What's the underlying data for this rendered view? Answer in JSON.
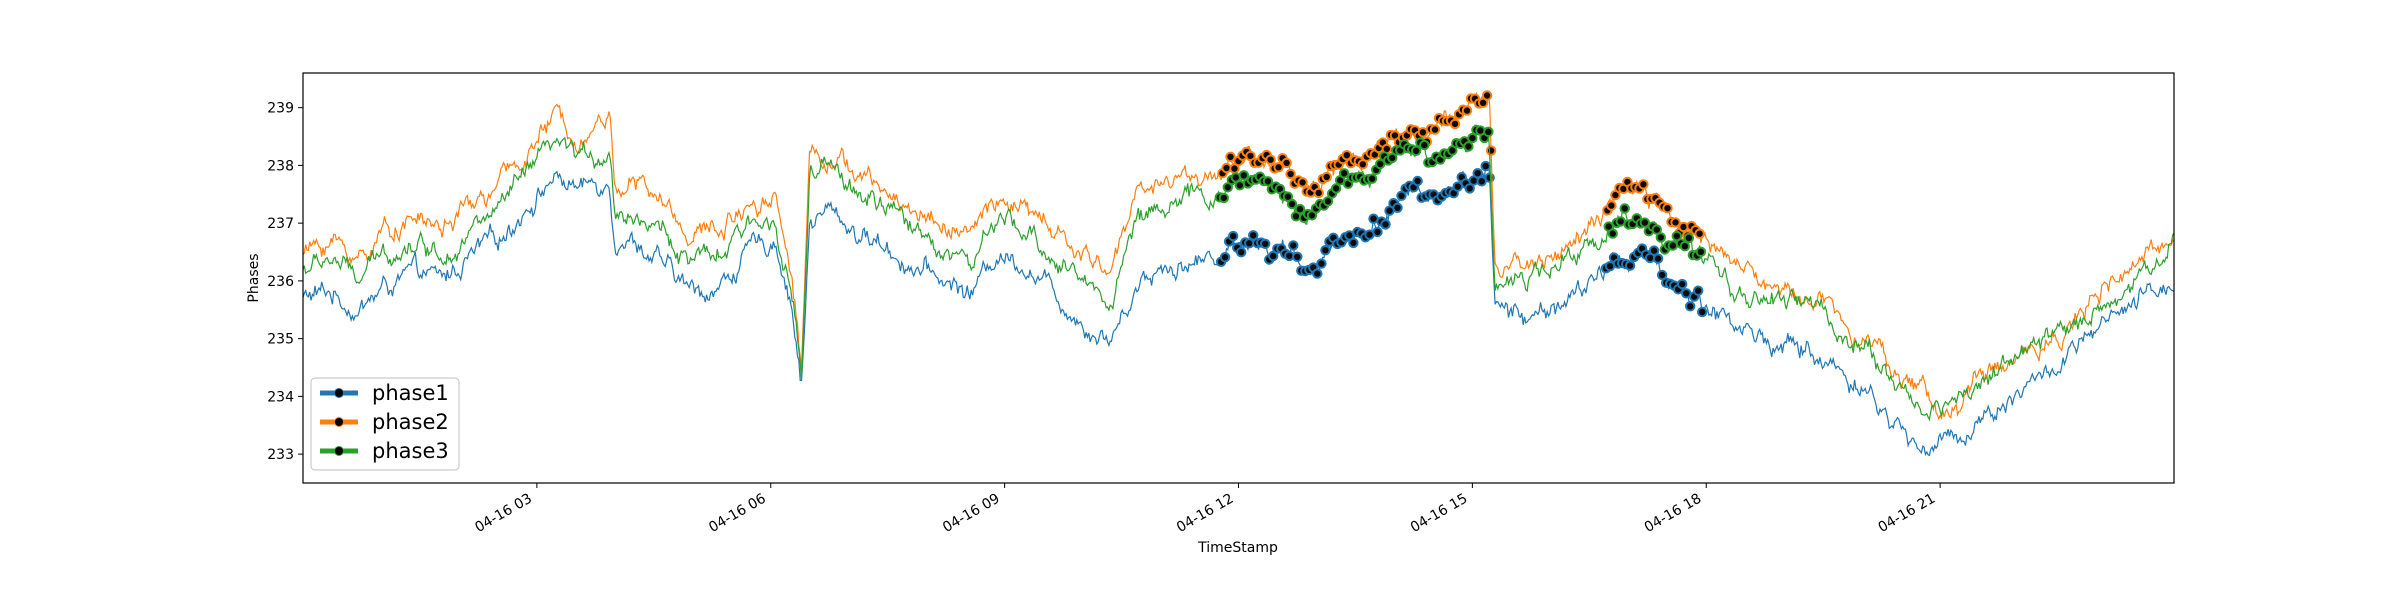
{
  "chart_data": {
    "type": "line",
    "title": "",
    "xlabel": "TimeStamp",
    "ylabel": "Phases",
    "x_range": [
      "04-16 00:00",
      "04-16 24:00"
    ],
    "ylim": [
      232.5,
      239.6
    ],
    "x_ticks": [
      {
        "hour": 3,
        "label": "04-16 03"
      },
      {
        "hour": 6,
        "label": "04-16 06"
      },
      {
        "hour": 9,
        "label": "04-16 09"
      },
      {
        "hour": 12,
        "label": "04-16 12"
      },
      {
        "hour": 15,
        "label": "04-16 15"
      },
      {
        "hour": 18,
        "label": "04-16 18"
      },
      {
        "hour": 21,
        "label": "04-16 21"
      }
    ],
    "y_ticks": [
      233,
      234,
      235,
      236,
      237,
      238,
      239
    ],
    "legend_position": "lower-left",
    "grid": false,
    "series": [
      {
        "name": "phase1",
        "color": "#1f77b4",
        "points": [
          [
            0,
            235.7
          ],
          [
            0.5,
            235.8
          ],
          [
            1,
            235.5
          ],
          [
            1.5,
            235.9
          ],
          [
            2,
            236.1
          ],
          [
            2.5,
            236.0
          ],
          [
            3,
            236.4
          ],
          [
            3.5,
            236.7
          ],
          [
            4,
            237.3
          ],
          [
            4.5,
            237.8
          ],
          [
            5,
            237.6
          ],
          [
            5.5,
            237.8
          ],
          [
            5.6,
            236.8
          ],
          [
            6,
            236.7
          ],
          [
            6.5,
            236.2
          ],
          [
            7,
            235.8
          ],
          [
            7.5,
            235.9
          ],
          [
            8,
            236.5
          ],
          [
            8.5,
            236.7
          ],
          [
            8.8,
            235.5
          ],
          [
            8.95,
            234.2
          ],
          [
            9.1,
            237.0
          ],
          [
            9.5,
            237.2
          ],
          [
            10,
            236.8
          ],
          [
            10.5,
            236.6
          ],
          [
            11,
            236.2
          ],
          [
            11.5,
            236.0
          ],
          [
            12,
            235.8
          ],
          [
            12.5,
            236.5
          ],
          [
            13,
            236.3
          ],
          [
            13.5,
            235.8
          ],
          [
            14,
            235.3
          ],
          [
            14.5,
            235.0
          ],
          [
            15,
            236.0
          ],
          [
            15.5,
            236.3
          ],
          [
            16,
            236.3
          ],
          [
            16.5,
            236.5
          ],
          [
            17,
            236.8
          ],
          [
            17.5,
            236.5
          ],
          [
            18,
            236.2
          ],
          [
            18.5,
            236.7
          ],
          [
            19,
            236.8
          ],
          [
            19.5,
            237.2
          ],
          [
            20,
            237.5
          ],
          [
            20.5,
            237.6
          ],
          [
            21,
            237.8
          ],
          [
            21.3,
            238.0
          ],
          [
            21.4,
            235.6
          ],
          [
            22,
            235.3
          ],
          [
            22.5,
            235.6
          ],
          [
            23,
            235.8
          ],
          [
            23.5,
            236.3
          ],
          [
            24,
            236.5
          ],
          [
            24.5,
            236.0
          ],
          [
            25,
            235.7
          ],
          [
            25.5,
            235.4
          ],
          [
            26,
            235.1
          ],
          [
            26.5,
            234.9
          ],
          [
            27,
            234.8
          ],
          [
            27.5,
            234.5
          ],
          [
            28,
            234.2
          ],
          [
            28.5,
            233.6
          ],
          [
            29,
            233.1
          ],
          [
            29.5,
            233.2
          ],
          [
            30,
            233.5
          ],
          [
            30.5,
            233.9
          ],
          [
            31,
            234.2
          ],
          [
            31.5,
            234.5
          ],
          [
            32,
            234.9
          ],
          [
            32.5,
            235.3
          ],
          [
            33,
            235.6
          ],
          [
            33.4,
            235.9
          ],
          [
            33.6,
            236.0
          ]
        ]
      },
      {
        "name": "phase2",
        "color": "#ff7f0e",
        "points": [
          [
            0,
            236.5
          ],
          [
            0.5,
            236.7
          ],
          [
            1,
            236.4
          ],
          [
            1.5,
            236.9
          ],
          [
            2,
            237.1
          ],
          [
            2.5,
            236.9
          ],
          [
            3,
            237.3
          ],
          [
            3.5,
            237.6
          ],
          [
            4,
            238.2
          ],
          [
            4.5,
            238.8
          ],
          [
            5,
            238.6
          ],
          [
            5.5,
            238.9
          ],
          [
            5.6,
            237.7
          ],
          [
            6,
            237.7
          ],
          [
            6.5,
            237.3
          ],
          [
            7,
            236.8
          ],
          [
            7.5,
            236.9
          ],
          [
            8,
            237.4
          ],
          [
            8.5,
            237.5
          ],
          [
            8.8,
            236.0
          ],
          [
            8.95,
            234.5
          ],
          [
            9.1,
            238.3
          ],
          [
            9.5,
            238.2
          ],
          [
            10,
            237.8
          ],
          [
            10.5,
            237.5
          ],
          [
            11,
            237.2
          ],
          [
            11.5,
            237.0
          ],
          [
            12,
            236.8
          ],
          [
            12.5,
            237.4
          ],
          [
            13,
            237.2
          ],
          [
            13.5,
            236.8
          ],
          [
            14,
            236.4
          ],
          [
            14.5,
            236.2
          ],
          [
            15,
            237.6
          ],
          [
            15.5,
            237.8
          ],
          [
            16,
            237.8
          ],
          [
            16.5,
            237.9
          ],
          [
            17,
            238.2
          ],
          [
            17.5,
            237.9
          ],
          [
            18,
            237.6
          ],
          [
            18.5,
            238.0
          ],
          [
            19,
            238.2
          ],
          [
            19.5,
            238.4
          ],
          [
            20,
            238.6
          ],
          [
            20.5,
            238.7
          ],
          [
            21,
            238.9
          ],
          [
            21.3,
            239.2
          ],
          [
            21.4,
            236.2
          ],
          [
            22,
            236.3
          ],
          [
            22.5,
            236.5
          ],
          [
            23,
            236.8
          ],
          [
            23.5,
            237.3
          ],
          [
            24,
            237.6
          ],
          [
            24.5,
            237.1
          ],
          [
            25,
            236.9
          ],
          [
            25.5,
            236.5
          ],
          [
            26,
            236.1
          ],
          [
            26.5,
            235.8
          ],
          [
            27,
            235.8
          ],
          [
            27.5,
            235.5
          ],
          [
            28,
            235.2
          ],
          [
            28.5,
            234.6
          ],
          [
            29,
            234.1
          ],
          [
            29.5,
            233.7
          ],
          [
            30,
            234.2
          ],
          [
            30.5,
            234.5
          ],
          [
            31,
            234.8
          ],
          [
            31.5,
            235.1
          ],
          [
            32,
            235.5
          ],
          [
            32.5,
            235.9
          ],
          [
            33,
            236.3
          ],
          [
            33.4,
            236.6
          ],
          [
            33.6,
            237.1
          ]
        ]
      },
      {
        "name": "phase3",
        "color": "#2ca02c",
        "points": [
          [
            0,
            236.2
          ],
          [
            0.5,
            236.4
          ],
          [
            1,
            236.0
          ],
          [
            1.5,
            236.5
          ],
          [
            2,
            236.7
          ],
          [
            2.5,
            236.5
          ],
          [
            3,
            236.9
          ],
          [
            3.5,
            237.2
          ],
          [
            4,
            237.8
          ],
          [
            4.5,
            238.3
          ],
          [
            5,
            238.1
          ],
          [
            5.5,
            238.3
          ],
          [
            5.6,
            237.2
          ],
          [
            6,
            237.2
          ],
          [
            6.5,
            236.8
          ],
          [
            7,
            236.3
          ],
          [
            7.5,
            236.4
          ],
          [
            8,
            236.9
          ],
          [
            8.5,
            237.1
          ],
          [
            8.8,
            235.7
          ],
          [
            8.95,
            234.3
          ],
          [
            9.1,
            237.8
          ],
          [
            9.5,
            237.9
          ],
          [
            10,
            237.5
          ],
          [
            10.5,
            237.2
          ],
          [
            11,
            236.9
          ],
          [
            11.5,
            236.6
          ],
          [
            12,
            236.3
          ],
          [
            12.5,
            237.0
          ],
          [
            13,
            236.8
          ],
          [
            13.5,
            236.4
          ],
          [
            14,
            236.0
          ],
          [
            14.5,
            235.7
          ],
          [
            15,
            237.1
          ],
          [
            15.5,
            237.4
          ],
          [
            16,
            237.4
          ],
          [
            16.5,
            237.5
          ],
          [
            17,
            237.8
          ],
          [
            17.5,
            237.5
          ],
          [
            18,
            237.2
          ],
          [
            18.5,
            237.6
          ],
          [
            19,
            237.8
          ],
          [
            19.5,
            238.0
          ],
          [
            20,
            238.2
          ],
          [
            20.5,
            238.3
          ],
          [
            21,
            238.5
          ],
          [
            21.3,
            238.7
          ],
          [
            21.4,
            236.0
          ],
          [
            22,
            236.0
          ],
          [
            22.5,
            236.2
          ],
          [
            23,
            236.5
          ],
          [
            23.5,
            237.0
          ],
          [
            24,
            237.2
          ],
          [
            24.5,
            236.7
          ],
          [
            25,
            236.4
          ],
          [
            25.5,
            236.0
          ],
          [
            26,
            235.7
          ],
          [
            26.5,
            235.6
          ],
          [
            27,
            235.7
          ],
          [
            27.5,
            235.2
          ],
          [
            28,
            234.9
          ],
          [
            28.5,
            234.3
          ],
          [
            29,
            233.8
          ],
          [
            29.5,
            233.8
          ],
          [
            30,
            234.2
          ],
          [
            30.5,
            234.5
          ],
          [
            31,
            234.8
          ],
          [
            31.5,
            235.0
          ],
          [
            32,
            235.4
          ],
          [
            32.5,
            235.7
          ],
          [
            33,
            236.1
          ],
          [
            33.4,
            236.4
          ],
          [
            33.6,
            236.8
          ]
        ]
      }
    ]
  }
}
